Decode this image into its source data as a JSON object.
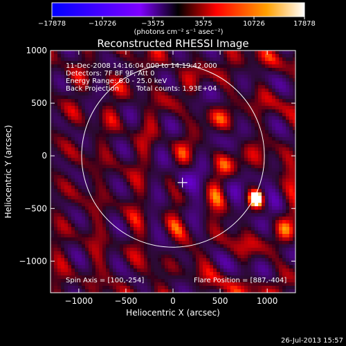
{
  "chart_data": {
    "type": "heatmap",
    "title": "Reconstructed RHESSI Image",
    "xlabel": "Heliocentric X (arcsec)",
    "ylabel": "Heliocentric Y (arcsec)",
    "xlim": [
      -1300,
      1300
    ],
    "ylim": [
      -1300,
      1000
    ],
    "x_ticks": [
      -1000,
      -500,
      0,
      500,
      1000
    ],
    "y_ticks": [
      -1000,
      -500,
      0,
      500,
      1000
    ],
    "x_tick_labels": [
      "−1000",
      "−500",
      "0",
      "500",
      "1000"
    ],
    "y_tick_labels": [
      "−1000",
      "−500",
      "0",
      "500",
      "1000"
    ],
    "colorbar": {
      "min": -17878,
      "max": 17878,
      "ticks": [
        -17878,
        -10726,
        -3575,
        3575,
        10726,
        17878
      ],
      "tick_labels": [
        "−17878",
        "−10726",
        "−3575",
        "3575",
        "10726",
        "17878"
      ],
      "unit_label": "(photons cm⁻² s⁻¹ asec⁻²)"
    },
    "annotations": {
      "time_range": "11-Dec-2008 14:16:04.000 to 14:19:42.000",
      "detectors": "Detectors: 7F 8F 9F, Att 0",
      "energy": "Energy Range: 6.0 - 25.0 keV",
      "method": "Back Projection",
      "total_counts": "Total counts: 1.93E+04",
      "spin_axis": "Spin Axis = [100,-254]",
      "flare_position": "Flare Position = [887,-404]"
    },
    "solar_disk": {
      "center": [
        0,
        0
      ],
      "radius_arcsec": 970
    },
    "spin_axis_marker": [
      100,
      -254
    ],
    "flare_source": {
      "x": 887,
      "y": -404,
      "peak": 17878
    },
    "timestamp": "26-Jul-2013 15:57"
  }
}
